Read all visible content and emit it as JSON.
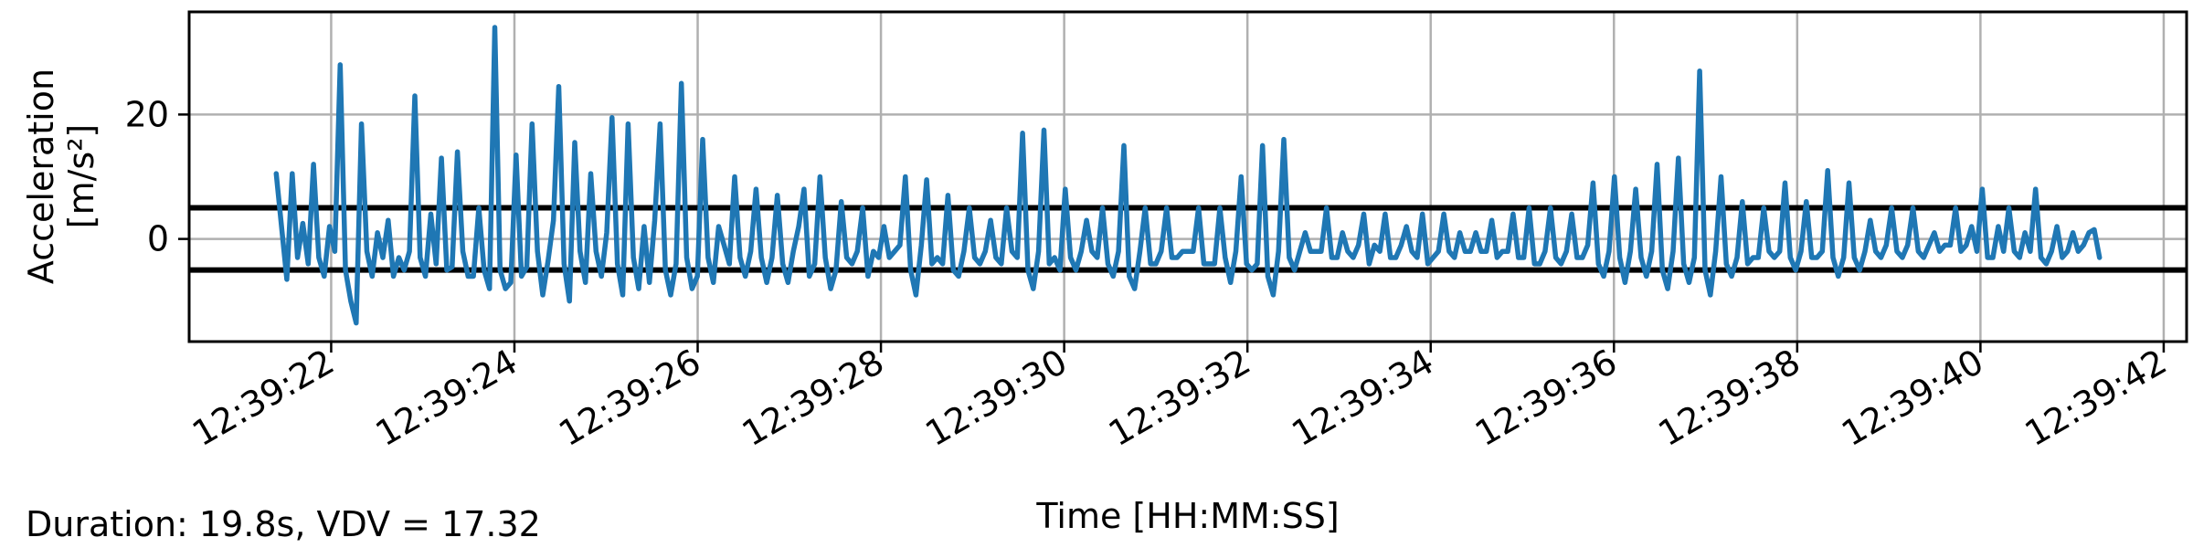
{
  "chart_data": {
    "type": "line",
    "xlabel": "Time [HH:MM:SS]",
    "ylabel_line1": "Acceleration",
    "ylabel_line2": "[m/s²]",
    "xlim": [
      "12:39:20.45",
      "12:39:42.25"
    ],
    "ylim": [
      -16.5,
      36.5
    ],
    "xticks": [
      "12:39:22",
      "12:39:24",
      "12:39:26",
      "12:39:28",
      "12:39:30",
      "12:39:32",
      "12:39:34",
      "12:39:36",
      "12:39:38",
      "12:39:40",
      "12:39:42"
    ],
    "yticks": [
      0,
      20
    ],
    "grid": true,
    "thresholds": [
      5,
      -5
    ],
    "series": [
      {
        "color": "#1f77b4",
        "t_start": "12:39:21.4",
        "t_end": "12:39:41.3",
        "values": [
          10.5,
          2,
          -6.5,
          10.5,
          -3,
          2.5,
          -4,
          12,
          -3,
          -6,
          2,
          -2,
          28,
          -5,
          -10,
          -13.5,
          18.5,
          -2,
          -6,
          1,
          -3,
          3,
          -6,
          -3,
          -5,
          -2,
          23,
          -3,
          -6,
          4,
          -4,
          13,
          -5,
          -4.5,
          14,
          -2,
          -6,
          -6,
          5,
          -5,
          -8,
          34,
          -5,
          -8,
          -7,
          13.5,
          -6,
          -4.5,
          18.5,
          -2,
          -9,
          -3.5,
          3,
          24.5,
          -4,
          -10,
          15.5,
          -2,
          -7,
          10.5,
          -2,
          -6,
          1,
          19.5,
          -4,
          -9,
          18.5,
          -3,
          -8,
          2,
          -7,
          3,
          18.5,
          -5,
          -9,
          -4,
          25,
          -3,
          -8,
          -6,
          16,
          -3,
          -7,
          2,
          -1,
          -4,
          10,
          -3,
          -6,
          -2,
          8,
          -3,
          -7,
          -3,
          7,
          -4,
          -7,
          -2,
          2,
          8,
          -6,
          -4,
          10,
          -3,
          -8,
          -5,
          6,
          -3,
          -4,
          -2,
          5,
          -6,
          -2,
          -3,
          2,
          -3,
          -2,
          -1,
          10,
          -5,
          -9,
          -1,
          9.5,
          -4,
          -3,
          -4,
          7,
          -5,
          -6,
          -2,
          5,
          -3,
          -4,
          -2,
          3,
          -3,
          -4,
          5,
          -2,
          -3,
          17,
          -5,
          -8,
          -2,
          17.5,
          -4,
          -3,
          -5,
          8,
          -3,
          -5,
          -2,
          3,
          -2,
          -3,
          5,
          -4,
          -6,
          -2,
          15,
          -6,
          -8,
          -2,
          5,
          -4,
          -4,
          -2,
          5,
          -3,
          -3,
          -2,
          -2,
          -2,
          5,
          -4,
          -4,
          -4,
          5,
          -3,
          -7,
          -2,
          10,
          -4,
          -5,
          -4,
          15,
          -6,
          -9,
          -2,
          16,
          -3,
          -5,
          -2,
          1,
          -2,
          -2,
          -2,
          5,
          -3,
          -3,
          1,
          -2,
          -3,
          -1,
          4,
          -4,
          -1,
          -2,
          4,
          -3,
          -3,
          -1,
          2,
          -2,
          -3,
          4,
          -4,
          -3,
          -2,
          4,
          -2,
          -3,
          1,
          -2,
          -2,
          1,
          -2,
          -2,
          3,
          -3,
          -2,
          -2,
          4,
          -3,
          -3,
          5,
          -4,
          -4,
          -2,
          5,
          -3,
          -4,
          -2,
          4,
          -3,
          -3,
          -1,
          9,
          -4,
          -6,
          -2,
          10,
          -3,
          -7,
          -2,
          8,
          -3,
          -6,
          -2,
          12,
          -5,
          -8,
          -2,
          13,
          -4,
          -7,
          -3,
          27,
          -5,
          -9,
          -2,
          10,
          -4,
          -6,
          -3,
          6,
          -4,
          -3,
          -3,
          5,
          -2,
          -3,
          -2,
          9,
          -3,
          -5,
          -2,
          6,
          -3,
          -3,
          -2,
          11,
          -3,
          -6,
          -3,
          9,
          -3,
          -5,
          -2,
          3,
          -2,
          -3,
          -1,
          5,
          -2,
          -3,
          -1,
          5,
          -2,
          -3,
          -1,
          1,
          -2,
          -1,
          -1,
          5,
          -2,
          -1,
          2,
          -2,
          8,
          -3,
          -3,
          2,
          -2,
          5,
          -2,
          -3,
          1,
          -2,
          8,
          -3,
          -4,
          -2,
          2,
          -3,
          -2,
          1,
          -2,
          -1,
          1,
          1.5,
          -3
        ]
      }
    ]
  },
  "footer_note": "Duration: 19.8s, VDV = 17.32"
}
